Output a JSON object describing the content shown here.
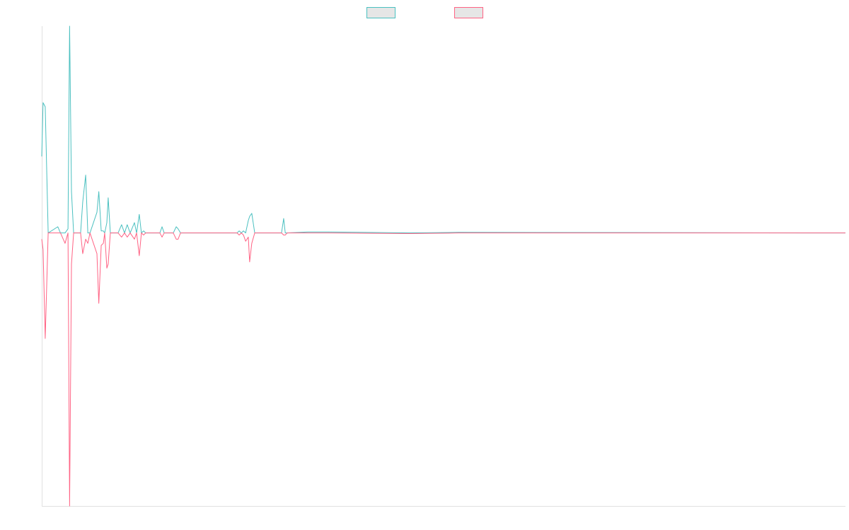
{
  "chart_data": {
    "type": "line",
    "x": [
      0,
      0.5,
      1.3,
      2.4,
      6,
      7,
      8.7,
      9.8,
      10.4,
      11.1,
      11.9,
      14.5,
      15.3,
      16.4,
      17.2,
      18,
      20.6,
      21.3,
      22.2,
      23,
      23.5,
      24.3,
      24.8,
      25.6,
      28.5,
      29.8,
      30.9,
      31.9,
      33,
      34.6,
      35.4,
      36.4,
      37.2,
      38,
      38.8,
      44.1,
      44.9,
      45.7,
      49.1,
      50.2,
      50.9,
      51.8,
      72.9,
      73.7,
      74.5,
      75.3,
      76.1,
      77.1,
      77.6,
      78.4,
      79.5,
      89.5,
      90.3,
      90.9,
      91.6,
      99.3,
      107,
      137.3,
      155.5,
      300
    ],
    "series": [
      {
        "color": "#4bc0c0",
        "values": [
          37,
          63,
          61,
          0,
          3,
          0,
          0,
          2,
          100,
          20,
          0,
          0,
          15,
          28,
          0,
          0,
          10,
          20,
          1,
          1,
          0,
          5,
          17,
          0,
          0,
          4,
          0,
          4,
          0,
          5,
          0,
          9,
          0,
          1,
          0,
          0,
          3,
          0,
          0,
          3,
          2,
          0,
          0,
          1,
          0,
          1,
          0,
          6,
          8,
          9.5,
          0,
          0,
          7,
          0,
          0,
          0.5,
          0.5,
          0,
          0.3,
          0
        ]
      },
      {
        "color": "#ff6384",
        "values": [
          -3,
          -8,
          -51,
          0,
          0,
          0,
          -5,
          0,
          -132,
          -15,
          0,
          0,
          -10,
          -3,
          -5,
          0,
          -10,
          -34,
          -6,
          -5,
          0,
          -17,
          -15,
          0,
          0,
          -2,
          0,
          -2,
          0,
          -3,
          0,
          -11,
          0,
          -1,
          0,
          0,
          -2,
          0,
          0,
          -3,
          -3,
          0,
          0,
          -1,
          0,
          -1,
          -4,
          -2,
          -14,
          -5,
          0,
          0,
          -1,
          -1,
          0,
          0,
          0,
          -0.3,
          0,
          0
        ]
      }
    ],
    "xlim": [
      0,
      300
    ],
    "ylim": [
      -132,
      100
    ],
    "legend": "top"
  }
}
